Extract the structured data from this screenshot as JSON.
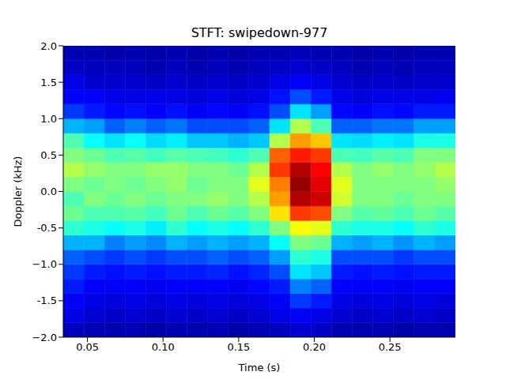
{
  "chart_data": {
    "type": "heatmap",
    "title": "STFT: swipedown-977",
    "x_label": "Time (s)",
    "y_label": "Doppler (kHz)",
    "xlim": [
      0.034,
      0.2933
    ],
    "ylim": [
      -2,
      2
    ],
    "xticks": [
      0.05,
      {
        "value": 0.1,
        "label": "0.10"
      },
      0.15,
      {
        "value": 0.2,
        "label": "0.20"
      },
      0.25
    ],
    "yticks": [
      {
        "value": -2,
        "label": "−2.0"
      },
      -1.5,
      {
        "value": -1,
        "label": "−1.0"
      },
      -0.5,
      {
        "value": 0,
        "label": "0.0"
      },
      0.5,
      {
        "value": 1,
        "label": "1.0"
      },
      1.5,
      {
        "value": 2,
        "label": "2.0"
      }
    ],
    "time_edges": [
      0.034,
      0.0477,
      0.0613,
      0.075,
      0.0886,
      0.1023,
      0.1159,
      0.1296,
      0.1432,
      0.1568,
      0.1705,
      0.1841,
      0.1978,
      0.2114,
      0.2251,
      0.2387,
      0.2524,
      0.266,
      0.2797,
      0.2933
    ],
    "doppler_edges": [
      -2,
      -1.8,
      -1.6,
      -1.4,
      -1.2,
      -1,
      -0.8,
      -0.6,
      -0.4,
      -0.2,
      0,
      0.2,
      0.4,
      0.6,
      0.8,
      1,
      1.2,
      1.4,
      1.6,
      1.8,
      2
    ],
    "intensity": [
      [
        0.06,
        0.1,
        0.12,
        0.15,
        0.18,
        0.22,
        0.3,
        0.42,
        0.48,
        0.45,
        0.5,
        0.55,
        0.5,
        0.45,
        0.3,
        0.18,
        0.12,
        0.1,
        0.07,
        0.05
      ],
      [
        0.05,
        0.08,
        0.1,
        0.12,
        0.15,
        0.2,
        0.3,
        0.4,
        0.45,
        0.5,
        0.48,
        0.52,
        0.48,
        0.38,
        0.28,
        0.15,
        0.12,
        0.08,
        0.06,
        0.05
      ],
      [
        0.05,
        0.07,
        0.09,
        0.12,
        0.14,
        0.18,
        0.25,
        0.38,
        0.45,
        0.48,
        0.5,
        0.5,
        0.45,
        0.35,
        0.22,
        0.13,
        0.1,
        0.08,
        0.06,
        0.04
      ],
      [
        0.05,
        0.08,
        0.1,
        0.12,
        0.15,
        0.2,
        0.28,
        0.4,
        0.46,
        0.5,
        0.48,
        0.5,
        0.46,
        0.38,
        0.25,
        0.14,
        0.1,
        0.08,
        0.06,
        0.05
      ],
      [
        0.04,
        0.07,
        0.09,
        0.11,
        0.14,
        0.18,
        0.26,
        0.36,
        0.44,
        0.48,
        0.5,
        0.52,
        0.44,
        0.34,
        0.22,
        0.12,
        0.1,
        0.07,
        0.05,
        0.04
      ],
      [
        0.05,
        0.08,
        0.1,
        0.12,
        0.15,
        0.2,
        0.3,
        0.42,
        0.48,
        0.5,
        0.52,
        0.52,
        0.46,
        0.36,
        0.24,
        0.14,
        0.1,
        0.08,
        0.06,
        0.05
      ],
      [
        0.05,
        0.07,
        0.09,
        0.12,
        0.15,
        0.2,
        0.28,
        0.38,
        0.45,
        0.5,
        0.48,
        0.5,
        0.45,
        0.32,
        0.2,
        0.12,
        0.09,
        0.07,
        0.05,
        0.04
      ],
      [
        0.05,
        0.08,
        0.1,
        0.12,
        0.16,
        0.22,
        0.3,
        0.4,
        0.48,
        0.52,
        0.5,
        0.5,
        0.44,
        0.32,
        0.2,
        0.13,
        0.1,
        0.08,
        0.06,
        0.05
      ],
      [
        0.04,
        0.07,
        0.09,
        0.11,
        0.14,
        0.2,
        0.28,
        0.38,
        0.46,
        0.5,
        0.5,
        0.48,
        0.42,
        0.3,
        0.2,
        0.12,
        0.09,
        0.07,
        0.05,
        0.04
      ],
      [
        0.05,
        0.08,
        0.1,
        0.13,
        0.16,
        0.22,
        0.3,
        0.42,
        0.5,
        0.55,
        0.6,
        0.55,
        0.45,
        0.32,
        0.22,
        0.14,
        0.1,
        0.08,
        0.06,
        0.05
      ],
      [
        0.06,
        0.1,
        0.12,
        0.15,
        0.2,
        0.28,
        0.38,
        0.5,
        0.65,
        0.72,
        0.75,
        0.82,
        0.78,
        0.55,
        0.35,
        0.2,
        0.14,
        0.1,
        0.07,
        0.05
      ],
      [
        0.08,
        0.12,
        0.18,
        0.25,
        0.35,
        0.42,
        0.5,
        0.62,
        0.82,
        0.95,
        0.98,
        0.95,
        0.85,
        0.72,
        0.55,
        0.35,
        0.2,
        0.12,
        0.08,
        0.06
      ],
      [
        0.07,
        0.1,
        0.15,
        0.22,
        0.32,
        0.4,
        0.48,
        0.6,
        0.8,
        0.92,
        0.9,
        0.88,
        0.82,
        0.68,
        0.45,
        0.28,
        0.15,
        0.1,
        0.07,
        0.05
      ],
      [
        0.05,
        0.08,
        0.1,
        0.12,
        0.15,
        0.2,
        0.3,
        0.42,
        0.5,
        0.58,
        0.6,
        0.55,
        0.45,
        0.35,
        0.22,
        0.13,
        0.1,
        0.08,
        0.06,
        0.05
      ],
      [
        0.05,
        0.07,
        0.09,
        0.12,
        0.14,
        0.2,
        0.28,
        0.4,
        0.46,
        0.5,
        0.5,
        0.5,
        0.44,
        0.34,
        0.22,
        0.12,
        0.09,
        0.07,
        0.05,
        0.04
      ],
      [
        0.05,
        0.08,
        0.1,
        0.12,
        0.15,
        0.2,
        0.3,
        0.4,
        0.47,
        0.5,
        0.5,
        0.52,
        0.46,
        0.36,
        0.24,
        0.14,
        0.1,
        0.08,
        0.06,
        0.05
      ],
      [
        0.04,
        0.07,
        0.09,
        0.11,
        0.14,
        0.18,
        0.27,
        0.38,
        0.45,
        0.48,
        0.5,
        0.5,
        0.45,
        0.35,
        0.24,
        0.13,
        0.1,
        0.07,
        0.05,
        0.04
      ],
      [
        0.05,
        0.08,
        0.1,
        0.12,
        0.15,
        0.2,
        0.3,
        0.42,
        0.48,
        0.5,
        0.5,
        0.52,
        0.5,
        0.4,
        0.28,
        0.15,
        0.1,
        0.08,
        0.06,
        0.05
      ],
      [
        0.05,
        0.07,
        0.09,
        0.12,
        0.15,
        0.2,
        0.28,
        0.4,
        0.46,
        0.5,
        0.52,
        0.55,
        0.5,
        0.4,
        0.28,
        0.15,
        0.11,
        0.08,
        0.06,
        0.05
      ]
    ]
  }
}
